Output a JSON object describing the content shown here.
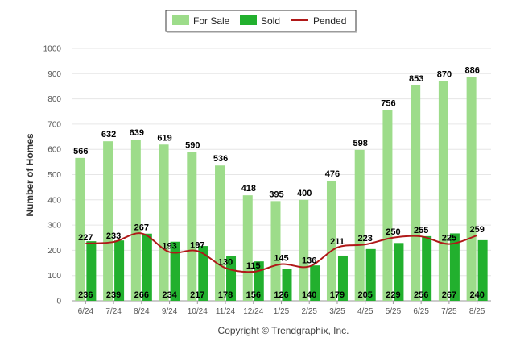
{
  "chart_data": {
    "type": "bar",
    "ylabel": "Number of Homes",
    "ylim": [
      0,
      1000
    ],
    "yticks": [
      0,
      100,
      200,
      300,
      400,
      500,
      600,
      700,
      800,
      900,
      1000
    ],
    "grid": true,
    "legend_position": "top-center",
    "categories": [
      "6/24",
      "7/24",
      "8/24",
      "9/24",
      "10/24",
      "11/24",
      "12/24",
      "1/25",
      "2/25",
      "3/25",
      "4/25",
      "5/25",
      "6/25",
      "7/25",
      "8/25"
    ],
    "series": [
      {
        "name": "For Sale",
        "type": "bar",
        "color": "#9ddc8a",
        "values": [
          566,
          632,
          639,
          619,
          590,
          536,
          418,
          395,
          400,
          476,
          598,
          756,
          853,
          870,
          886
        ]
      },
      {
        "name": "Sold",
        "type": "bar",
        "color": "#22b02e",
        "values": [
          236,
          239,
          266,
          234,
          217,
          178,
          156,
          126,
          140,
          179,
          205,
          229,
          256,
          267,
          240
        ]
      },
      {
        "name": "Pended",
        "type": "line",
        "color": "#b01818",
        "values": [
          227,
          233,
          267,
          193,
          197,
          130,
          115,
          145,
          136,
          211,
          223,
          250,
          255,
          225,
          259
        ]
      }
    ]
  },
  "credit": "Copyright © Trendgraphix, Inc."
}
